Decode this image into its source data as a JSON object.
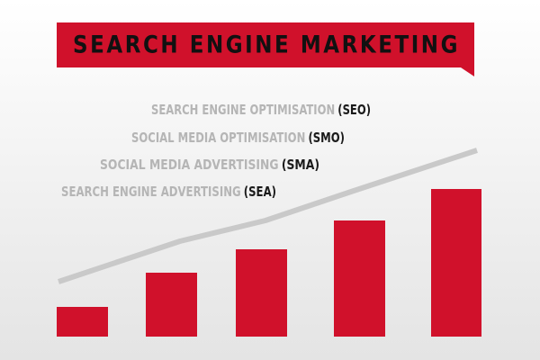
{
  "title": "SEARCH ENGINE MARKETING",
  "items": [
    {
      "text": "SEARCH ENGINE OPTIMISATION",
      "abbr": "(SEO)"
    },
    {
      "text": "SOCIAL MEDIA OPTIMISATION",
      "abbr": "(SMO)"
    },
    {
      "text": "SOCIAL MEDIA ADVERTISING",
      "abbr": "(SMA)"
    },
    {
      "text": "SEARCH ENGINE ADVERTISING",
      "abbr": "(SEA)"
    }
  ]
}
